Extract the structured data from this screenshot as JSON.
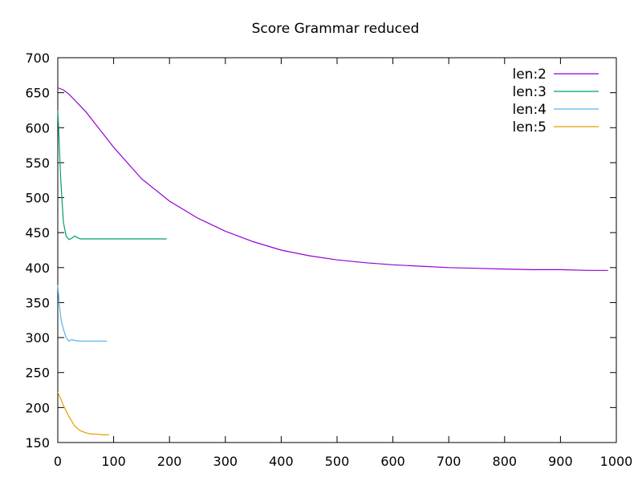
{
  "chart_data": {
    "type": "line",
    "title": "Score Grammar reduced",
    "xlabel": "",
    "ylabel": "",
    "xlim": [
      0,
      1000
    ],
    "ylim": [
      150,
      700
    ],
    "xticks": [
      0,
      100,
      200,
      300,
      400,
      500,
      600,
      700,
      800,
      900,
      1000
    ],
    "yticks": [
      150,
      200,
      250,
      300,
      350,
      400,
      450,
      500,
      550,
      600,
      650,
      700
    ],
    "grid": false,
    "legend_position": "top-right",
    "series": [
      {
        "name": "len:2",
        "color": "#9400d3",
        "x": [
          0,
          10,
          20,
          50,
          100,
          150,
          200,
          250,
          300,
          350,
          400,
          450,
          500,
          550,
          600,
          650,
          700,
          750,
          800,
          850,
          900,
          950,
          985
        ],
        "y": [
          657,
          654,
          648,
          623,
          572,
          527,
          495,
          471,
          452,
          437,
          425,
          417,
          411,
          407,
          404,
          402,
          400,
          399,
          398,
          397,
          397,
          396,
          396
        ]
      },
      {
        "name": "len:3",
        "color": "#009e73",
        "x": [
          0,
          2,
          5,
          10,
          15,
          20,
          25,
          30,
          35,
          40,
          50,
          100,
          150,
          195
        ],
        "y": [
          625,
          590,
          530,
          465,
          445,
          440,
          442,
          445,
          443,
          441,
          441,
          441,
          441,
          441
        ]
      },
      {
        "name": "len:4",
        "color": "#56b4e9",
        "x": [
          0,
          3,
          6,
          10,
          15,
          20,
          25,
          30,
          40,
          50,
          60,
          70,
          88
        ],
        "y": [
          375,
          345,
          325,
          312,
          300,
          295,
          297,
          296,
          295,
          295,
          295,
          295,
          295
        ]
      },
      {
        "name": "len:5",
        "color": "#e69f00",
        "x": [
          0,
          5,
          10,
          20,
          30,
          40,
          50,
          60,
          70,
          80,
          92
        ],
        "y": [
          222,
          213,
          203,
          187,
          174,
          167,
          164,
          162,
          162,
          161,
          161
        ]
      }
    ]
  }
}
